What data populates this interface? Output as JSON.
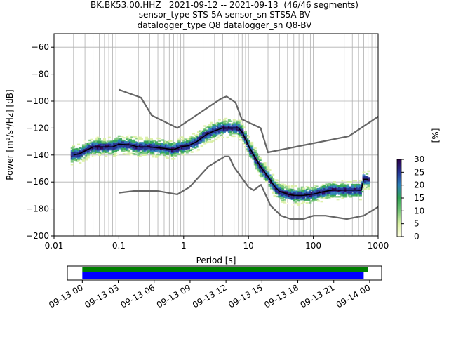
{
  "header": {
    "line1": "BK.BK53.00.HHZ   2021-09-12 -- 2021-09-13  (46/46 segments)",
    "line2": "sensor_type STS-5A sensor_sn STS5A-BV",
    "line3": "datalogger_type Q8 datalogger_sn Q8-BV"
  },
  "colorbar": {
    "label": "[%]",
    "ticks": [
      "0",
      "5",
      "10",
      "15",
      "20",
      "25",
      "30"
    ],
    "colors": [
      "#ffffe0",
      "#d9f0a3",
      "#78c679",
      "#31a354",
      "#2c7fb8",
      "#253494",
      "#2d004b"
    ]
  },
  "chart_data": [
    {
      "type": "line",
      "title": "",
      "xlabel": "Period [s]",
      "ylabel": "Power [m²/s⁴/Hz] [dB]",
      "x_scale": "log",
      "xlim": [
        0.01,
        1000
      ],
      "ylim": [
        -200,
        -50
      ],
      "x_ticks": [
        "0.01",
        "0.1",
        "1",
        "10",
        "100",
        "1000"
      ],
      "y_ticks": [
        "−200",
        "−180",
        "−160",
        "−140",
        "−120",
        "−100",
        "−80",
        "−60"
      ],
      "grid": true,
      "series": [
        {
          "role": "noise-model-high",
          "color": "#666666",
          "x": [
            0.1,
            0.22,
            0.32,
            0.8,
            3.8,
            4.6,
            6.3,
            7.9,
            15.4,
            20,
            354.8,
            1000
          ],
          "y": [
            -91.5,
            -97.4,
            -110.5,
            -120,
            -98,
            -96.5,
            -101,
            -113.5,
            -120,
            -138,
            -126,
            -111.5
          ]
        },
        {
          "role": "noise-model-low",
          "color": "#666666",
          "x": [
            0.1,
            0.17,
            0.4,
            0.8,
            1.24,
            2.4,
            4.3,
            5.0,
            6.0,
            10.0,
            12.0,
            15.6,
            21.9,
            31.6,
            45,
            70,
            101,
            154,
            328,
            600,
            1000
          ],
          "y": [
            -168,
            -166.7,
            -166.7,
            -169.2,
            -163.7,
            -148.6,
            -141.1,
            -141.1,
            -149,
            -163.8,
            -166.2,
            -162.1,
            -177.5,
            -185,
            -187.5,
            -187.5,
            -185,
            -185,
            -187.5,
            -185,
            -178.5
          ]
        },
        {
          "role": "mean",
          "color": "#000000",
          "x": [
            0.02,
            0.025,
            0.03,
            0.04,
            0.06,
            0.08,
            0.1,
            0.15,
            0.2,
            0.3,
            0.5,
            0.7,
            0.9,
            1.2,
            1.6,
            2.2,
            3.0,
            4.0,
            5.0,
            6.0,
            7.0,
            8.0,
            9.0,
            10.0,
            12.0,
            15.0,
            20.0,
            25.0,
            30.0,
            40.0,
            50.0,
            70.0,
            100.0,
            150.0,
            200.0,
            300.0,
            450.0,
            550.0,
            600.0,
            700.0
          ],
          "y": [
            -140,
            -139,
            -137,
            -134,
            -134,
            -134,
            -132,
            -132.5,
            -134,
            -134,
            -135,
            -136,
            -134,
            -133,
            -130,
            -125,
            -122,
            -120,
            -120,
            -120,
            -120,
            -123,
            -128,
            -133,
            -140,
            -148,
            -156,
            -163,
            -167,
            -169,
            -170,
            -170,
            -169,
            -167,
            -166,
            -166,
            -166,
            -166,
            -158,
            -158
          ]
        }
      ]
    },
    {
      "type": "bar",
      "title": "",
      "orientation": "horizontal",
      "x_ticks": [
        "09-13 00",
        "09-13 03",
        "09-13 06",
        "09-13 09",
        "09-13 12",
        "09-13 15",
        "09-13 18",
        "09-13 21",
        "09-14 00"
      ],
      "xlim": [
        "2021-09-12 22:45",
        "2021-09-14 01:00"
      ],
      "series": [
        {
          "role": "data-coverage",
          "color": "#008000",
          "start": "2021-09-13 00:00",
          "end": "2021-09-13 23:50"
        },
        {
          "role": "processed-coverage",
          "color": "#0000ff",
          "start": "2021-09-13 00:00",
          "end": "2021-09-13 23:30"
        }
      ]
    }
  ]
}
